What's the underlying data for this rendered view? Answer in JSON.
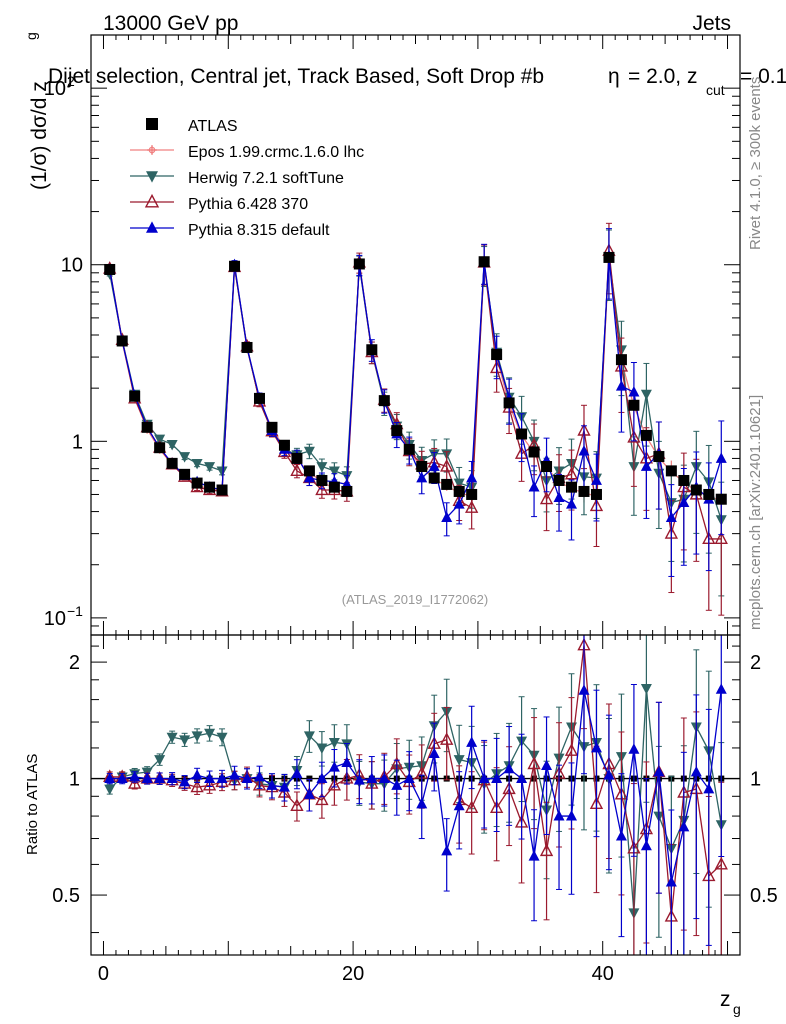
{
  "header": {
    "energy_label": "13000 GeV pp",
    "category_label": "Jets",
    "plot_title": "Dijet selection, Central jet, Track Based, Soft Drop #b",
    "title_beta": "= 2.0, z",
    "title_cut_sub": "cut",
    "title_cut_value": "= 0.1",
    "title_symbol": "η"
  },
  "side_labels": {
    "rivet": "Rivet 4.1.0, ≥ 300k events",
    "mcplots": "mcplots.cern.ch [arXiv:2401.10621]"
  },
  "watermark": "(ATLAS_2019_I1772062)",
  "chart_data": {
    "type": "scatter",
    "xlabel": "z",
    "xlabel_sub": "g",
    "ylabel": "(1/σ) dσ/d z",
    "ylabel_sub": "g",
    "ratio_ylabel": "Ratio to ATLAS",
    "xlim": [
      -1,
      51
    ],
    "ylim": [
      0.08,
      200
    ],
    "ylog": true,
    "ratio_ylim": [
      0.35,
      2.35
    ],
    "x_ticks": [
      0,
      20,
      40
    ],
    "y_ticks": [
      {
        "value": 0.1,
        "label": "10",
        "exp": "−1"
      },
      {
        "value": 1,
        "label": "1",
        "exp": ""
      },
      {
        "value": 10,
        "label": "10",
        "exp": ""
      },
      {
        "value": 100,
        "label": "10",
        "exp": "2"
      }
    ],
    "ratio_ticks": [
      {
        "value": 0.5,
        "label": "0.5"
      },
      {
        "value": 1,
        "label": "1"
      },
      {
        "value": 2,
        "label": "2"
      }
    ],
    "x": [
      0.5,
      1.5,
      2.5,
      3.5,
      4.5,
      5.5,
      6.5,
      7.5,
      8.5,
      9.5,
      10.5,
      11.5,
      12.5,
      13.5,
      14.5,
      15.5,
      16.5,
      17.5,
      18.5,
      19.5,
      20.5,
      21.5,
      22.5,
      23.5,
      24.5,
      25.5,
      26.5,
      27.5,
      28.5,
      29.5,
      30.5,
      31.5,
      32.5,
      33.5,
      34.5,
      35.5,
      36.5,
      37.5,
      38.5,
      39.5,
      40.5,
      41.5,
      42.5,
      43.5,
      44.5,
      45.5,
      46.5,
      47.5,
      48.5,
      49.5
    ],
    "series": [
      {
        "name": "ATLAS",
        "color": "#000000",
        "marker": "square",
        "values": [
          9.4,
          3.7,
          1.8,
          1.2,
          0.92,
          0.75,
          0.65,
          0.58,
          0.55,
          0.53,
          9.8,
          3.4,
          1.75,
          1.2,
          0.95,
          0.8,
          0.68,
          0.6,
          0.55,
          0.52,
          10.1,
          3.3,
          1.7,
          1.15,
          0.9,
          0.72,
          0.62,
          0.57,
          0.52,
          0.5,
          10.4,
          3.1,
          1.65,
          1.1,
          0.87,
          0.72,
          0.6,
          0.55,
          0.52,
          0.5,
          11.0,
          2.9,
          1.6,
          1.08,
          0.82,
          0.68,
          0.6,
          0.53,
          0.5,
          0.47
        ]
      },
      {
        "name": "Epos 1.99.crmc.1.6.0 lhc",
        "color": "#f08080",
        "marker": "star",
        "values": [
          9.3,
          3.65,
          1.75,
          1.17,
          0.9,
          0.74,
          0.64,
          0.56,
          0.54,
          0.52,
          9.7,
          3.35,
          1.72,
          1.18,
          0.92,
          0.78,
          0.67,
          0.59,
          0.54,
          0.51,
          10.0,
          3.25,
          1.68,
          1.13,
          0.88,
          0.71,
          0.61,
          0.56,
          0.51,
          0.49,
          10.3,
          3.0,
          1.62,
          1.08,
          0.86,
          0.71,
          0.59,
          0.54,
          0.51,
          0.49,
          10.9,
          2.85,
          1.58,
          1.06,
          0.81,
          0.67,
          0.59,
          0.52,
          0.49,
          0.46
        ]
      },
      {
        "name": "Herwig 7.2.1 softTune",
        "color": "#2e6464",
        "marker": "triangle-down",
        "values": [
          8.9,
          3.75,
          1.85,
          1.25,
          1.03,
          0.96,
          0.82,
          0.75,
          0.72,
          0.68,
          9.7,
          3.4,
          1.7,
          1.15,
          0.9,
          0.84,
          0.88,
          0.72,
          0.68,
          0.64,
          9.9,
          3.2,
          1.65,
          1.22,
          0.96,
          0.78,
          0.85,
          0.85,
          0.58,
          0.55,
          10.1,
          3.2,
          1.78,
          1.38,
          1.0,
          0.6,
          0.68,
          0.75,
          0.63,
          0.62,
          11.0,
          3.3,
          0.72,
          1.85,
          0.66,
          0.45,
          0.47,
          0.72,
          0.59,
          0.36
        ]
      },
      {
        "name": "Pythia 6.428 370",
        "color": "#9b1a2e",
        "marker": "triangle-up-open",
        "values": [
          9.5,
          3.75,
          1.75,
          1.2,
          0.92,
          0.74,
          0.63,
          0.55,
          0.53,
          0.52,
          9.7,
          3.45,
          1.68,
          1.14,
          0.87,
          0.68,
          0.62,
          0.53,
          0.53,
          0.52,
          10.3,
          3.2,
          1.72,
          1.25,
          0.88,
          0.74,
          0.76,
          0.72,
          0.46,
          0.42,
          10.3,
          2.6,
          1.55,
          0.85,
          0.95,
          0.47,
          0.62,
          0.65,
          1.15,
          0.43,
          12.0,
          2.65,
          1.05,
          0.8,
          0.85,
          0.3,
          0.55,
          0.5,
          0.28,
          0.28
        ]
      },
      {
        "name": "Pythia 8.315 default",
        "color": "#0000cc",
        "marker": "triangle-up",
        "values": [
          9.4,
          3.7,
          1.82,
          1.2,
          0.92,
          0.75,
          0.64,
          0.59,
          0.55,
          0.53,
          10.0,
          3.4,
          1.76,
          1.15,
          0.9,
          0.82,
          0.62,
          0.6,
          0.59,
          0.57,
          10.0,
          3.3,
          1.7,
          1.1,
          0.9,
          0.62,
          0.72,
          0.37,
          0.44,
          0.62,
          10.4,
          3.1,
          1.75,
          1.1,
          0.55,
          0.78,
          0.48,
          0.44,
          0.88,
          0.6,
          11.2,
          2.05,
          1.9,
          0.72,
          0.85,
          0.37,
          0.45,
          0.55,
          0.47,
          0.8
        ]
      }
    ],
    "ratios": [
      {
        "name": "Herwig 7.2.1 softTune",
        "values": [
          0.94,
          1.01,
          1.03,
          1.04,
          1.12,
          1.28,
          1.26,
          1.29,
          1.31,
          1.28,
          0.99,
          1.0,
          0.97,
          0.96,
          0.95,
          1.05,
          1.29,
          1.2,
          1.24,
          1.23,
          0.98,
          0.97,
          0.97,
          1.06,
          1.07,
          1.08,
          1.37,
          1.49,
          1.12,
          1.1,
          0.97,
          1.03,
          1.08,
          1.25,
          1.15,
          0.83,
          1.13,
          1.36,
          1.21,
          1.24,
          1.0,
          1.14,
          0.45,
          1.71,
          0.8,
          0.66,
          0.78,
          1.36,
          1.18,
          0.76
        ]
      },
      {
        "name": "Pythia 6.428 370",
        "values": [
          1.01,
          1.01,
          0.97,
          1.0,
          1.0,
          0.99,
          0.97,
          0.95,
          0.96,
          0.98,
          0.99,
          1.01,
          0.96,
          0.95,
          0.92,
          0.85,
          0.91,
          0.88,
          0.96,
          1.0,
          1.02,
          0.97,
          1.01,
          1.09,
          0.98,
          1.03,
          1.23,
          1.26,
          0.88,
          0.84,
          0.99,
          0.84,
          0.94,
          0.77,
          1.09,
          0.65,
          1.03,
          1.18,
          2.21,
          0.86,
          1.09,
          0.91,
          0.66,
          0.74,
          1.04,
          0.44,
          0.92,
          0.94,
          0.56,
          0.6
        ]
      },
      {
        "name": "Pythia 8.315 default",
        "values": [
          1.0,
          1.0,
          1.01,
          1.0,
          1.0,
          1.0,
          0.98,
          1.02,
          1.0,
          1.0,
          1.02,
          1.0,
          1.01,
          0.96,
          0.95,
          1.03,
          0.91,
          1.0,
          1.07,
          1.1,
          0.99,
          1.0,
          1.0,
          0.96,
          1.0,
          0.86,
          1.16,
          0.65,
          0.85,
          1.24,
          1.0,
          1.0,
          1.06,
          1.0,
          0.63,
          1.08,
          0.8,
          0.8,
          1.69,
          1.2,
          1.02,
          0.71,
          1.19,
          0.67,
          1.04,
          0.54,
          0.75,
          1.04,
          0.94,
          1.7
        ]
      }
    ]
  }
}
